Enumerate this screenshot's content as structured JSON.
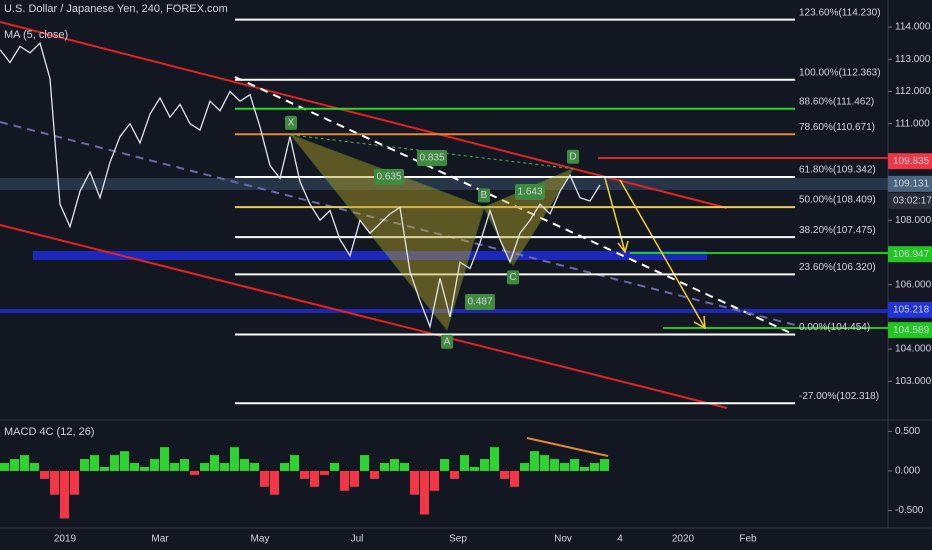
{
  "chart_data": [
    {
      "type": "line",
      "title": "U.S. Dollar / Japanese Yen, 240, FOREX.com",
      "subtitle": "MA (5, close)",
      "color": "#e0e3eb",
      "values": [
        113.3,
        112.9,
        113.4,
        113.2,
        113.5,
        112.4,
        108.5,
        107.8,
        108.9,
        109.5,
        108.7,
        109.8,
        110.6,
        111.0,
        110.4,
        111.3,
        111.8,
        111.2,
        111.6,
        111.0,
        110.8,
        111.7,
        111.4,
        112.0,
        111.7,
        111.9,
        110.9,
        109.7,
        109.3,
        110.6,
        109.2,
        108.5,
        108.0,
        108.3,
        107.4,
        106.9,
        108.0,
        107.6,
        107.9,
        108.2,
        108.4,
        106.4,
        105.5,
        104.7,
        106.2,
        105.0,
        106.7,
        106.5,
        107.3,
        108.3,
        107.4,
        106.7,
        107.6,
        108.0,
        108.5,
        108.2,
        108.9,
        109.4,
        108.7,
        108.6,
        109.1
      ],
      "ylim": [
        101.86,
        114.84
      ],
      "yticks": [
        {
          "value": 114,
          "label": "114.000"
        },
        {
          "value": 113,
          "label": "113.000"
        },
        {
          "value": 112,
          "label": "112.000"
        },
        {
          "value": 111,
          "label": "111.000"
        },
        {
          "value": 108,
          "label": "108.000"
        },
        {
          "value": 106,
          "label": "106.000"
        },
        {
          "value": 104,
          "label": "104.000"
        },
        {
          "value": 103,
          "label": "103.000"
        }
      ],
      "fib_levels": [
        {
          "label": "123.60%(114.230)",
          "value": 114.23,
          "color": "#ffffff"
        },
        {
          "label": "100.00%(112.363)",
          "value": 112.363,
          "color": "#ffffff"
        },
        {
          "label": "88.60%(111.462)",
          "value": 111.462,
          "color": "#2fd32f"
        },
        {
          "label": "78.60%(110.671)",
          "value": 110.671,
          "color": "#e8872c"
        },
        {
          "label": "61.80%(109.342)",
          "value": 109.342,
          "color": "#ffffff"
        },
        {
          "label": "50.00%(108.409)",
          "value": 108.409,
          "color": "#f2c94c"
        },
        {
          "label": "38.20%(107.475)",
          "value": 107.475,
          "color": "#ffffff"
        },
        {
          "label": "23.60%(106.320)",
          "value": 106.32,
          "color": "#ffffff"
        },
        {
          "label": "0.00%(104.454)",
          "value": 104.454,
          "color": "#ffffff"
        },
        {
          "label": "-27.00%(102.318)",
          "value": 102.318,
          "color": "#ffffff"
        }
      ],
      "pattern_points": [
        {
          "label": "X",
          "value": 110.65
        },
        {
          "label": "A",
          "value": 104.6
        },
        {
          "label": "B",
          "value": 108.4
        },
        {
          "label": "C",
          "value": 106.6
        },
        {
          "label": "D",
          "value": 109.6
        }
      ],
      "ratios": [
        0.835,
        0.635,
        1.643,
        0.487
      ],
      "price_tags": [
        {
          "value": 109.835,
          "label": "109.835",
          "color": "#f23645"
        },
        {
          "value": 109.131,
          "label": "109.131",
          "color": "#4a6580"
        },
        {
          "value": 106.947,
          "label": "106.947",
          "color": "#22c522"
        },
        {
          "value": 105.218,
          "label": "105.218",
          "color": "#2233d8"
        },
        {
          "value": 104.589,
          "label": "104.589",
          "color": "#22c522"
        }
      ],
      "countdown": "03:02:17"
    },
    {
      "type": "bar",
      "title": "MACD 4C (12, 26)",
      "up_color": "#2fd32f",
      "down_color": "#f23645",
      "values": [
        0.1,
        0.15,
        0.2,
        0.1,
        -0.1,
        -0.3,
        -0.6,
        -0.3,
        0.15,
        0.2,
        0.05,
        0.2,
        0.25,
        0.1,
        0.05,
        0.15,
        0.3,
        0.1,
        0.15,
        -0.05,
        0.1,
        0.2,
        0.1,
        0.3,
        0.15,
        0.1,
        -0.2,
        -0.3,
        0.1,
        0.2,
        -0.1,
        -0.2,
        -0.05,
        0.1,
        -0.25,
        -0.2,
        0.2,
        -0.1,
        0.1,
        0.15,
        0.1,
        -0.3,
        -0.55,
        -0.25,
        0.15,
        -0.1,
        0.2,
        0.05,
        0.15,
        0.3,
        -0.1,
        -0.2,
        0.1,
        0.25,
        0.2,
        0.15,
        0.1,
        0.15,
        0.05,
        0.1,
        0.15
      ],
      "ylim": [
        -0.72,
        0.58
      ],
      "yticks": [
        {
          "value": 0.5,
          "label": "0.500"
        },
        {
          "value": 0,
          "label": "0.000"
        },
        {
          "value": -0.5,
          "label": "-0.500"
        }
      ],
      "xaxis_labels": [
        "2019",
        "Mar",
        "May",
        "Jul",
        "Sep",
        "Nov",
        "4",
        "2020",
        "Feb"
      ]
    }
  ]
}
